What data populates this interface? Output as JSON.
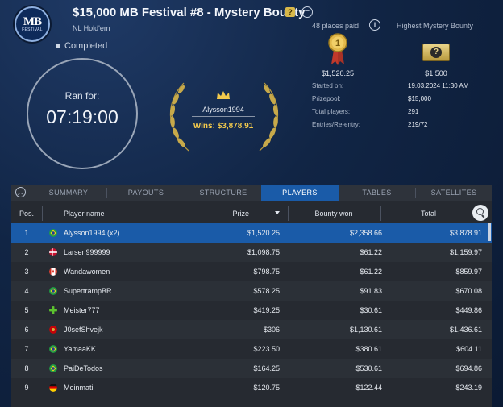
{
  "header": {
    "logo_text": "MB",
    "logo_subtext": "FESTIVAL",
    "title": "$15,000 MB Festival #8 - Mystery Bounty",
    "title_icon": "mystery-badge-icon",
    "subtitle": "NL Hold'em",
    "status": "Completed"
  },
  "timer": {
    "label": "Ran for:",
    "value": "07:19:00"
  },
  "winner": {
    "name": "Alysson1994",
    "wins": "Wins: $3,878.91"
  },
  "summary": {
    "places_paid": "48 places paid",
    "highest_bounty_label": "Highest Mystery Bounty",
    "first_prize": "$1,520.25",
    "highest_bounty": "$1,500",
    "rows": [
      {
        "label": "Started on:",
        "value": "19.03.2024  11:30 AM"
      },
      {
        "label": "Prizepool:",
        "value": "$15,000"
      },
      {
        "label": "Total players:",
        "value": "291"
      },
      {
        "label": "Entries/Re-entry:",
        "value": "219/72"
      }
    ]
  },
  "tabs": [
    "SUMMARY",
    "PAYOUTS",
    "STRUCTURE",
    "PLAYERS",
    "TABLES",
    "SATELLITES"
  ],
  "active_tab": "PLAYERS",
  "columns": {
    "pos": "Pos.",
    "player": "Player name",
    "prize": "Prize",
    "bounty": "Bounty won",
    "total": "Total"
  },
  "players": [
    {
      "pos": "1",
      "name": "Alysson1994 (x2)",
      "flag": "brazil-flag-icon",
      "prize": "$1,520.25",
      "bounty": "$2,358.66",
      "total": "$3,878.91"
    },
    {
      "pos": "2",
      "name": "Larsen999999",
      "flag": "denmark-flag-icon",
      "prize": "$1,098.75",
      "bounty": "$61.22",
      "total": "$1,159.97"
    },
    {
      "pos": "3",
      "name": "Wandawomen",
      "flag": "canada-flag-icon",
      "prize": "$798.75",
      "bounty": "$61.22",
      "total": "$859.97"
    },
    {
      "pos": "4",
      "name": "SupertrampBR",
      "flag": "brazil-flag-icon",
      "prize": "$578.25",
      "bounty": "$91.83",
      "total": "$670.08"
    },
    {
      "pos": "5",
      "name": "Meister777",
      "flag": "green-cross-flag-icon",
      "prize": "$419.25",
      "bounty": "$30.61",
      "total": "$449.86"
    },
    {
      "pos": "6",
      "name": "J0sefShvejk",
      "flag": "montenegro-flag-icon",
      "prize": "$306",
      "bounty": "$1,130.61",
      "total": "$1,436.61"
    },
    {
      "pos": "7",
      "name": "YamaaKK",
      "flag": "brazil-flag-icon",
      "prize": "$223.50",
      "bounty": "$380.61",
      "total": "$604.11"
    },
    {
      "pos": "8",
      "name": "PaiDeTodos",
      "flag": "brazil-flag-icon",
      "prize": "$164.25",
      "bounty": "$530.61",
      "total": "$694.86"
    },
    {
      "pos": "9",
      "name": "Moinmati",
      "flag": "germany-flag-icon",
      "prize": "$120.75",
      "bounty": "$122.44",
      "total": "$243.19"
    }
  ],
  "colors": {
    "accent": "#1a5ba8",
    "gold": "#f2c94c",
    "panel": "#262a31"
  }
}
